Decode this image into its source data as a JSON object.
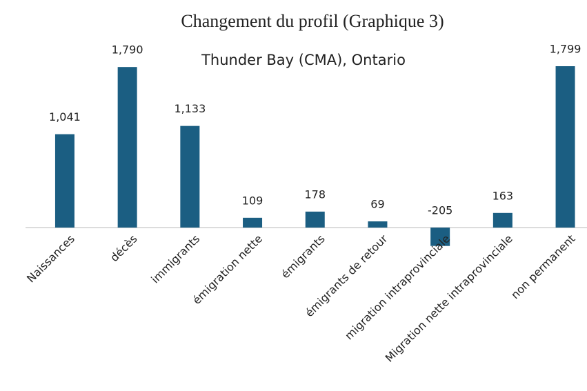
{
  "chart_data": {
    "type": "bar",
    "title": "Changement du profil (Graphique 3)",
    "subtitle": "Thunder Bay (CMA), Ontario",
    "categories": [
      "Naissances",
      "décès",
      "immigrants",
      "émigration nette",
      "émigrants",
      "émigrants de retour",
      "migration intraprovinciale",
      "Migration nette intraprovinciale",
      "non permanent"
    ],
    "values": [
      1041,
      1790,
      1133,
      109,
      178,
      69,
      -205,
      163,
      1799
    ],
    "value_labels": [
      "1,041",
      "1,790",
      "1,133",
      "109",
      "178",
      "69",
      "-205",
      "163",
      "1,799"
    ],
    "color": "#1b5e82"
  }
}
